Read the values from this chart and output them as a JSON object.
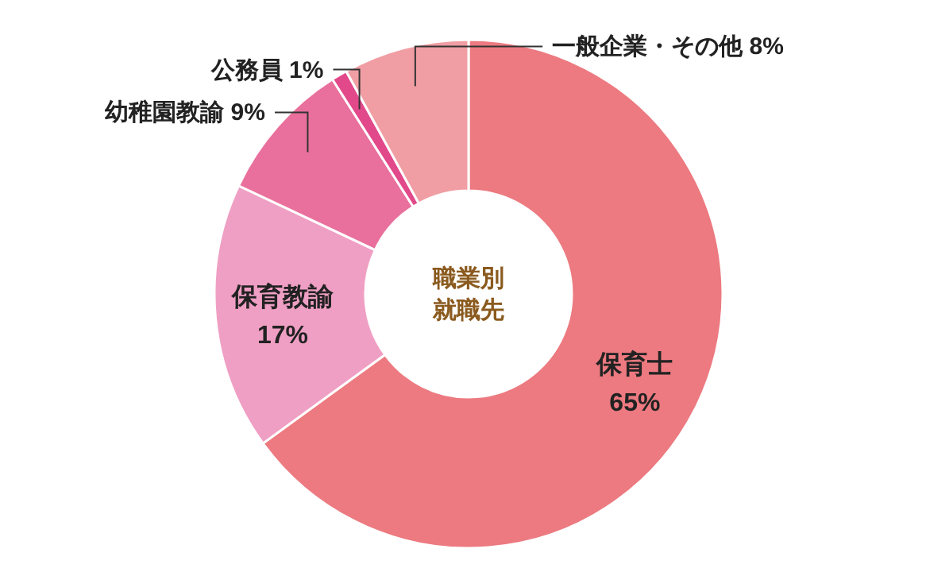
{
  "chart_data": {
    "type": "donut",
    "title": "職業別就職先",
    "categories": [
      "保育士",
      "保育教諭",
      "幼稚園教諭",
      "公務員",
      "一般企業・その他"
    ],
    "values": [
      65,
      17,
      9,
      1,
      8
    ],
    "value_labels": [
      "65%",
      "17%",
      "9%",
      "1%",
      "8%"
    ],
    "colors": [
      "#ec7a80",
      "#f09fc4",
      "#e9709c",
      "#e2498a",
      "#f09ea3"
    ]
  }
}
